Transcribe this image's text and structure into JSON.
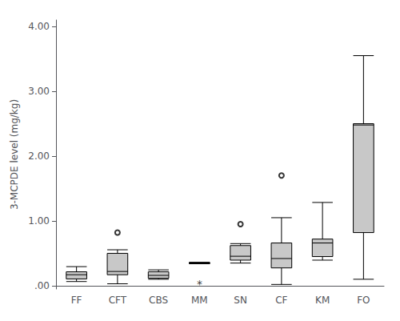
{
  "chart_data": {
    "type": "boxplot",
    "ylabel": "3-MCPDE level (mg/kg)",
    "categories": [
      "FF",
      "CFT",
      "CBS",
      "MM",
      "SN",
      "CF",
      "KM",
      "FO"
    ],
    "boxes": [
      {
        "q1": 0.105,
        "median": 0.17,
        "q3": 0.215,
        "whislo": 0.065,
        "whishi": 0.295,
        "fliers": []
      },
      {
        "q1": 0.17,
        "median": 0.22,
        "q3": 0.5,
        "whislo": 0.03,
        "whishi": 0.555,
        "fliers": [
          0.82
        ]
      },
      {
        "q1": 0.115,
        "median": 0.16,
        "q3": 0.215,
        "whislo": 0.1,
        "whishi": 0.245,
        "fliers": []
      },
      {
        "q1": 0.34,
        "median": 0.35,
        "q3": 0.36,
        "whislo": 0.34,
        "whishi": 0.36,
        "fliers": []
      },
      {
        "q1": 0.395,
        "median": 0.455,
        "q3": 0.62,
        "whislo": 0.35,
        "whishi": 0.65,
        "fliers": [
          0.95
        ]
      },
      {
        "q1": 0.275,
        "median": 0.42,
        "q3": 0.66,
        "whislo": 0.02,
        "whishi": 1.05,
        "fliers": [
          1.7
        ]
      },
      {
        "q1": 0.45,
        "median": 0.66,
        "q3": 0.72,
        "whislo": 0.395,
        "whishi": 1.285,
        "fliers": []
      },
      {
        "q1": 0.82,
        "median": 2.48,
        "q3": 2.5,
        "whislo": 0.1,
        "whishi": 3.55,
        "fliers": []
      }
    ],
    "ylim": [
      -0.05,
      4.1
    ],
    "yticks": [
      {
        "value": 0.0,
        "label": ".00"
      },
      {
        "value": 1.0,
        "label": "1.00"
      },
      {
        "value": 2.0,
        "label": "2.00"
      },
      {
        "value": 3.0,
        "label": "3.00"
      },
      {
        "value": 4.0,
        "label": "4.00"
      }
    ],
    "color": "#c8c8c8",
    "grid": false,
    "annotations": [
      {
        "text": "*",
        "x": "MM",
        "y": 0.018
      }
    ]
  }
}
